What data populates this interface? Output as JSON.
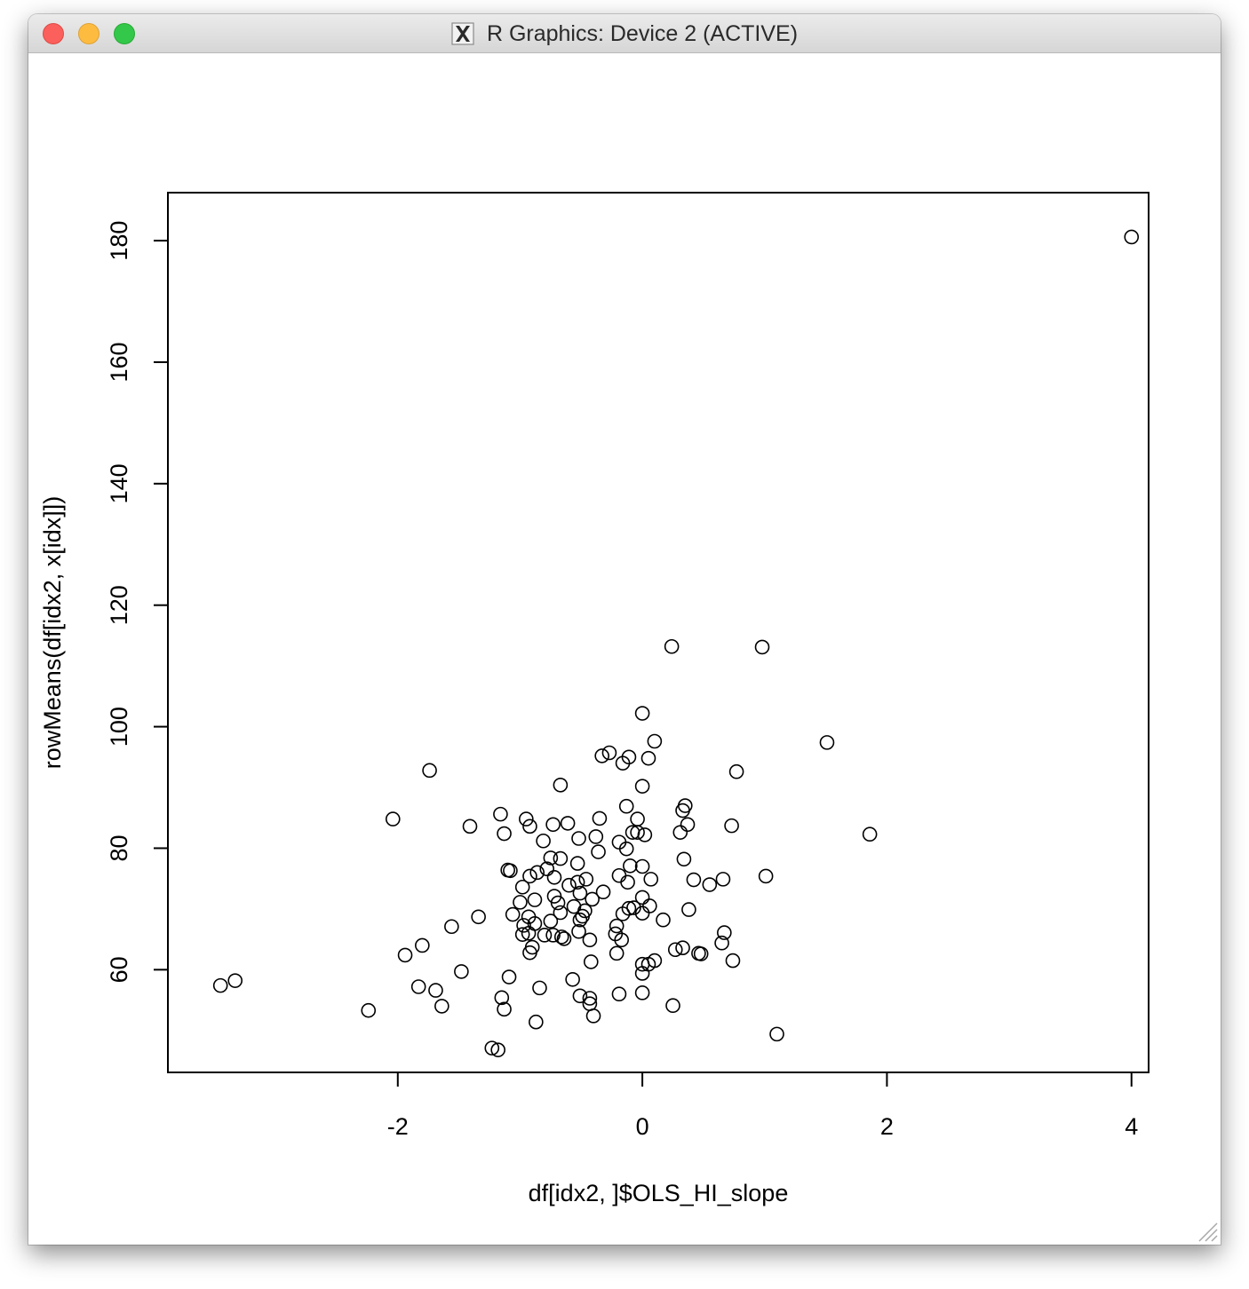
{
  "window": {
    "title": "R Graphics: Device 2 (ACTIVE)",
    "controls": [
      "close-button",
      "minimize-button",
      "zoom-button"
    ],
    "title_icon": "x11-icon"
  },
  "chart_data": {
    "type": "scatter",
    "title": "",
    "xlabel": "df[idx2, ]$OLS_HI_slope",
    "ylabel": "rowMeans(df[idx2, x[idx]])",
    "xlim": [
      -3.88,
      4.14
    ],
    "ylim": [
      43.1,
      187.9
    ],
    "x_ticks": [
      -2,
      0,
      2,
      4
    ],
    "x_tick_labels": [
      "-2",
      "0",
      "2",
      "4"
    ],
    "y_ticks": [
      60,
      80,
      100,
      120,
      140,
      160,
      180
    ],
    "y_tick_labels": [
      "60",
      "80",
      "100",
      "120",
      "140",
      "160",
      "180"
    ],
    "grid": false,
    "legend": "none",
    "marker": "open-circle",
    "points": [
      [
        4.0,
        180.6
      ],
      [
        0.24,
        113.2
      ],
      [
        0.98,
        113.1
      ],
      [
        0.0,
        102.2
      ],
      [
        1.51,
        97.4
      ],
      [
        0.1,
        97.6
      ],
      [
        -0.27,
        95.7
      ],
      [
        -0.33,
        95.2
      ],
      [
        -0.11,
        95.0
      ],
      [
        0.05,
        94.8
      ],
      [
        -0.16,
        94.0
      ],
      [
        -1.74,
        92.8
      ],
      [
        0.77,
        92.6
      ],
      [
        -0.67,
        90.4
      ],
      [
        0.0,
        90.2
      ],
      [
        0.35,
        87.0
      ],
      [
        -0.13,
        86.9
      ],
      [
        0.33,
        86.2
      ],
      [
        -1.16,
        85.6
      ],
      [
        -0.35,
        84.9
      ],
      [
        -0.95,
        84.8
      ],
      [
        -2.04,
        84.8
      ],
      [
        -0.04,
        84.8
      ],
      [
        -0.61,
        84.1
      ],
      [
        -0.73,
        83.9
      ],
      [
        -0.92,
        83.6
      ],
      [
        -1.41,
        83.6
      ],
      [
        0.37,
        83.9
      ],
      [
        0.73,
        83.7
      ],
      [
        1.86,
        82.3
      ],
      [
        -1.13,
        82.4
      ],
      [
        -0.08,
        82.6
      ],
      [
        -0.04,
        82.6
      ],
      [
        0.02,
        82.2
      ],
      [
        0.31,
        82.6
      ],
      [
        -0.38,
        81.9
      ],
      [
        -0.52,
        81.6
      ],
      [
        -0.81,
        81.2
      ],
      [
        -0.19,
        81.0
      ],
      [
        -0.13,
        79.9
      ],
      [
        -0.36,
        79.4
      ],
      [
        -0.75,
        78.4
      ],
      [
        -0.67,
        78.3
      ],
      [
        0.34,
        78.2
      ],
      [
        -0.1,
        77.1
      ],
      [
        -0.53,
        77.5
      ],
      [
        -0.78,
        76.6
      ],
      [
        0.0,
        77.0
      ],
      [
        -1.1,
        76.4
      ],
      [
        -1.08,
        76.3
      ],
      [
        -0.86,
        76.0
      ],
      [
        -0.19,
        75.5
      ],
      [
        -0.92,
        75.4
      ],
      [
        0.66,
        74.9
      ],
      [
        -0.72,
        75.2
      ],
      [
        0.07,
        74.9
      ],
      [
        -0.46,
        74.9
      ],
      [
        0.42,
        74.8
      ],
      [
        1.01,
        75.4
      ],
      [
        -0.12,
        74.4
      ],
      [
        -0.53,
        74.4
      ],
      [
        -0.6,
        73.9
      ],
      [
        0.55,
        74.0
      ],
      [
        -0.98,
        73.6
      ],
      [
        -0.32,
        72.8
      ],
      [
        -0.51,
        72.6
      ],
      [
        -0.72,
        72.1
      ],
      [
        -0.88,
        71.5
      ],
      [
        -1.0,
        71.1
      ],
      [
        -0.41,
        71.6
      ],
      [
        0.0,
        71.9
      ],
      [
        -0.69,
        71.0
      ],
      [
        -0.56,
        70.4
      ],
      [
        0.06,
        70.5
      ],
      [
        -0.11,
        70.1
      ],
      [
        -0.07,
        70.2
      ],
      [
        -0.47,
        69.7
      ],
      [
        -0.67,
        69.4
      ],
      [
        0.38,
        69.9
      ],
      [
        -0.16,
        69.2
      ],
      [
        0.0,
        69.3
      ],
      [
        -1.06,
        69.1
      ],
      [
        -0.93,
        68.7
      ],
      [
        -1.34,
        68.7
      ],
      [
        -0.49,
        68.8
      ],
      [
        -0.51,
        68.2
      ],
      [
        -0.75,
        68.0
      ],
      [
        0.17,
        68.2
      ],
      [
        -0.88,
        67.6
      ],
      [
        -0.97,
        67.3
      ],
      [
        -0.21,
        67.2
      ],
      [
        -1.56,
        67.1
      ],
      [
        -0.52,
        66.3
      ],
      [
        -0.93,
        66.0
      ],
      [
        0.67,
        66.1
      ],
      [
        -0.22,
        65.9
      ],
      [
        -0.98,
        65.8
      ],
      [
        -0.8,
        65.7
      ],
      [
        -0.73,
        65.7
      ],
      [
        -0.66,
        65.4
      ],
      [
        -0.64,
        65.1
      ],
      [
        -0.17,
        64.9
      ],
      [
        -0.43,
        64.9
      ],
      [
        0.65,
        64.4
      ],
      [
        -1.8,
        64.0
      ],
      [
        -0.9,
        63.7
      ],
      [
        0.33,
        63.6
      ],
      [
        0.27,
        63.3
      ],
      [
        -0.92,
        62.8
      ],
      [
        -0.21,
        62.7
      ],
      [
        0.48,
        62.6
      ],
      [
        0.46,
        62.7
      ],
      [
        -1.94,
        62.4
      ],
      [
        0.74,
        61.5
      ],
      [
        0.1,
        61.5
      ],
      [
        -0.42,
        61.3
      ],
      [
        0.0,
        60.9
      ],
      [
        0.05,
        60.9
      ],
      [
        -1.48,
        59.7
      ],
      [
        0.0,
        59.4
      ],
      [
        -1.09,
        58.8
      ],
      [
        -0.57,
        58.4
      ],
      [
        -3.33,
        58.2
      ],
      [
        -3.45,
        57.4
      ],
      [
        -1.83,
        57.2
      ],
      [
        -0.84,
        57.0
      ],
      [
        -1.69,
        56.6
      ],
      [
        -0.19,
        56.0
      ],
      [
        0.0,
        56.2
      ],
      [
        -0.51,
        55.7
      ],
      [
        -1.15,
        55.4
      ],
      [
        -0.43,
        55.3
      ],
      [
        -0.43,
        54.4
      ],
      [
        -1.64,
        54.0
      ],
      [
        0.25,
        54.1
      ],
      [
        -1.13,
        53.5
      ],
      [
        -2.24,
        53.3
      ],
      [
        -0.4,
        52.4
      ],
      [
        -0.87,
        51.4
      ],
      [
        1.1,
        49.4
      ],
      [
        -1.23,
        47.1
      ],
      [
        -1.18,
        46.8
      ]
    ]
  }
}
